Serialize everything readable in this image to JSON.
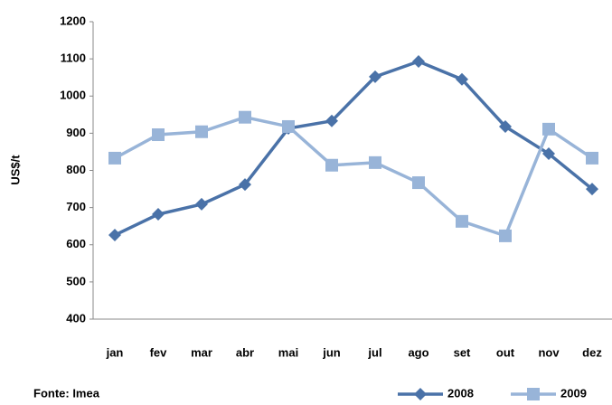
{
  "chart_data": {
    "type": "line",
    "y_label": "US$/t",
    "source": "Fonte: Imea",
    "categories": [
      "jan",
      "fev",
      "mar",
      "abr",
      "mai",
      "jun",
      "jul",
      "ago",
      "set",
      "out",
      "nov",
      "dez"
    ],
    "series": [
      {
        "name": "2008",
        "color": "#4a72a8",
        "marker": "diamond",
        "values": [
          626,
          682,
          709,
          762,
          913,
          933,
          1052,
          1093,
          1045,
          918,
          845,
          750
        ]
      },
      {
        "name": "2009",
        "color": "#98b4d8",
        "marker": "square",
        "values": [
          833,
          896,
          904,
          943,
          918,
          814,
          821,
          767,
          663,
          624,
          911,
          833
        ]
      }
    ],
    "ylim": [
      400,
      1200
    ],
    "yticks": [
      400,
      500,
      600,
      700,
      800,
      900,
      1000,
      1100,
      1200
    ],
    "grid": false,
    "legend": "bottom-right"
  }
}
